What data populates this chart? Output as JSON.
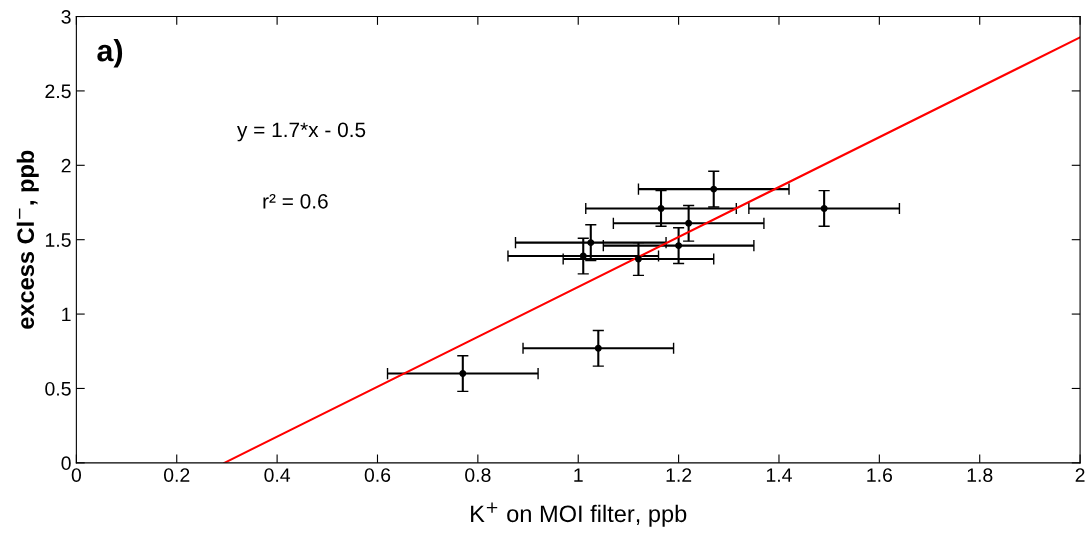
{
  "chart_data": {
    "type": "scatter",
    "xlabel": "K$^{+}$ on MOI filter, ppb",
    "ylabel": "excess Cl$^{−}$, ppb",
    "annotations": [
      "a)",
      "y = 1.7*x - 0.5",
      "r² = 0.6"
    ],
    "xlim": [
      0,
      2
    ],
    "xticks": [
      0,
      0.2,
      0.4,
      0.6,
      0.8,
      1,
      1.2,
      1.4,
      1.6,
      1.8,
      2
    ],
    "ylim": [
      0,
      3
    ],
    "yticks": [
      0,
      0.5,
      1,
      1.5,
      2,
      2.5,
      3
    ],
    "grid": false,
    "legend": false,
    "series": [
      {
        "color": "#000000",
        "marker": "circle",
        "x": [
          0.77,
          1.04,
          1.01,
          1.025,
          1.12,
          1.2,
          1.22,
          1.165,
          1.27,
          1.49
        ],
        "values": [
          0.6,
          0.77,
          1.39,
          1.48,
          1.37,
          1.46,
          1.61,
          1.71,
          1.84,
          1.71
        ],
        "xerrors": [
          0.15,
          0.15,
          0.15,
          0.15,
          0.15,
          0.15,
          0.15,
          0.15,
          0.15,
          0.15
        ],
        "errors": [
          0.12,
          0.12,
          0.12,
          0.12,
          0.11,
          0.12,
          0.12,
          0.12,
          0.12,
          0.12
        ]
      },
      {
        "type": "line",
        "color": "#ff0000",
        "line_style": "solid",
        "marker": "none",
        "x": [
          0.295,
          2
        ],
        "values": [
          0,
          2.86
        ]
      }
    ]
  }
}
